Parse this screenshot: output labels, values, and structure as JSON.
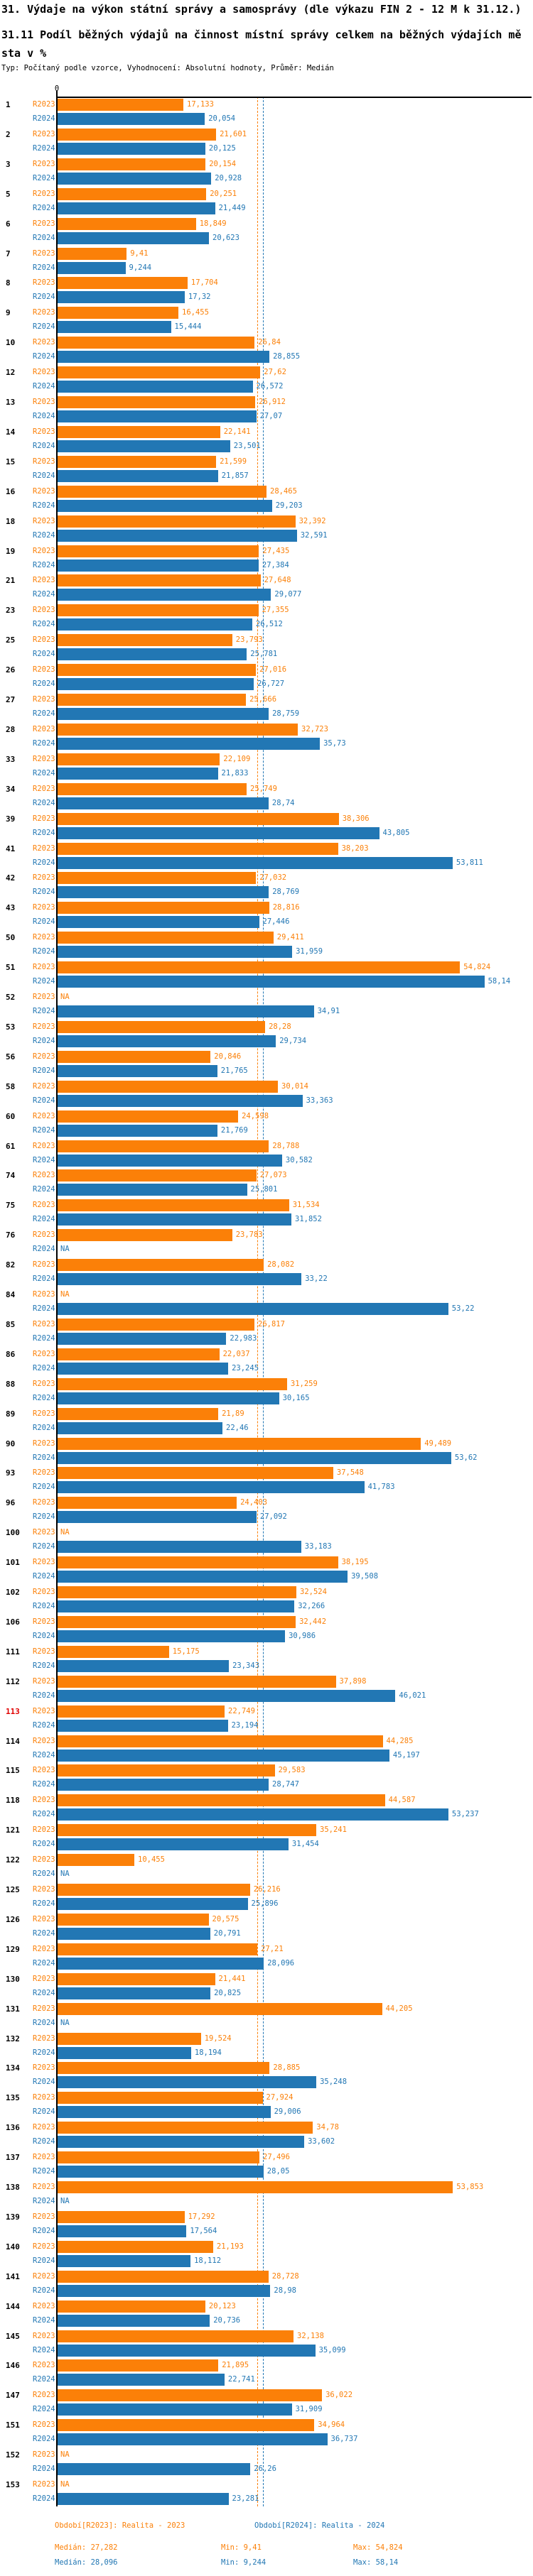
{
  "header": {
    "title": "31. Výdaje na výkon státní správy a samosprávy (dle výkazu FIN 2 - 12 M k 31.12.)",
    "subtitle": "31.11 Podíl běžných výdajů na činnost místní správy celkem na běžných výdajích města v %",
    "meta": "Typ: Počítaný podle vzorce, Vyhodnocení: Absolutní hodnoty, Průměr: Medián"
  },
  "axis": {
    "zero_label": "0"
  },
  "colors": {
    "r2023": "#fb8008",
    "r2024": "#2277b4",
    "axis": "#000000",
    "highlight": "#e00000"
  },
  "footer": {
    "legend_r2023": "Období[R2023]: Realita - 2023",
    "legend_r2024": "Období[R2024]: Realita - 2024",
    "r2023_stats": {
      "median": "Medián: 27,282",
      "min": "Min: 9,41",
      "max": "Max: 54,824"
    },
    "r2024_stats": {
      "median": "Medián: 28,096",
      "min": "Min: 9,244",
      "max": "Max: 58,14"
    }
  },
  "chart_data": {
    "type": "bar",
    "orientation": "horizontal",
    "unit": "%",
    "decimal_separator": ",",
    "na_text": "NA",
    "highlighted_category": "113",
    "xlim": [
      0,
      64.7
    ],
    "series": [
      {
        "name": "R2023",
        "legend": "Období[R2023]: Realita - 2023",
        "color": "#fb8008",
        "key": "r2023"
      },
      {
        "name": "R2024",
        "legend": "Období[R2024]: Realita - 2024",
        "color": "#2277b4",
        "key": "r2024"
      }
    ],
    "stats": {
      "r2023": {
        "median": 27.282,
        "min": 9.41,
        "max": 54.824
      },
      "r2024": {
        "median": 28.096,
        "min": 9.244,
        "max": 58.14
      }
    },
    "rows": [
      {
        "id": "1",
        "r2023": 17.133,
        "r2024": 20.054
      },
      {
        "id": "2",
        "r2023": 21.601,
        "r2024": 20.125
      },
      {
        "id": "3",
        "r2023": 20.154,
        "r2024": 20.928
      },
      {
        "id": "5",
        "r2023": 20.251,
        "r2024": 21.449
      },
      {
        "id": "6",
        "r2023": 18.849,
        "r2024": 20.623
      },
      {
        "id": "7",
        "r2023": 9.41,
        "r2024": 9.244
      },
      {
        "id": "8",
        "r2023": 17.704,
        "r2024": 17.32
      },
      {
        "id": "9",
        "r2023": 16.455,
        "r2024": 15.444
      },
      {
        "id": "10",
        "r2023": 26.84,
        "r2024": 28.855
      },
      {
        "id": "12",
        "r2023": 27.62,
        "r2024": 26.572
      },
      {
        "id": "13",
        "r2023": 26.912,
        "r2024": 27.07
      },
      {
        "id": "14",
        "r2023": 22.141,
        "r2024": 23.501
      },
      {
        "id": "15",
        "r2023": 21.599,
        "r2024": 21.857
      },
      {
        "id": "16",
        "r2023": 28.465,
        "r2024": 29.203
      },
      {
        "id": "18",
        "r2023": 32.392,
        "r2024": 32.591
      },
      {
        "id": "19",
        "r2023": 27.435,
        "r2024": 27.384
      },
      {
        "id": "21",
        "r2023": 27.648,
        "r2024": 29.077
      },
      {
        "id": "23",
        "r2023": 27.355,
        "r2024": 26.512
      },
      {
        "id": "25",
        "r2023": 23.793,
        "r2024": 25.781
      },
      {
        "id": "26",
        "r2023": 27.016,
        "r2024": 26.727
      },
      {
        "id": "27",
        "r2023": 25.666,
        "r2024": 28.759
      },
      {
        "id": "28",
        "r2023": 32.723,
        "r2024": 35.73
      },
      {
        "id": "33",
        "r2023": 22.109,
        "r2024": 21.833
      },
      {
        "id": "34",
        "r2023": 25.749,
        "r2024": 28.74
      },
      {
        "id": "39",
        "r2023": 38.306,
        "r2024": 43.805
      },
      {
        "id": "41",
        "r2023": 38.203,
        "r2024": 53.811
      },
      {
        "id": "42",
        "r2023": 27.032,
        "r2024": 28.769
      },
      {
        "id": "43",
        "r2023": 28.816,
        "r2024": 27.446
      },
      {
        "id": "50",
        "r2023": 29.411,
        "r2024": 31.959
      },
      {
        "id": "51",
        "r2023": 54.824,
        "r2024": 58.14
      },
      {
        "id": "52",
        "r2023": null,
        "r2024": 34.91
      },
      {
        "id": "53",
        "r2023": 28.28,
        "r2024": 29.734
      },
      {
        "id": "56",
        "r2023": 20.846,
        "r2024": 21.765
      },
      {
        "id": "58",
        "r2023": 30.014,
        "r2024": 33.363
      },
      {
        "id": "60",
        "r2023": 24.598,
        "r2024": 21.769
      },
      {
        "id": "61",
        "r2023": 28.788,
        "r2024": 30.582
      },
      {
        "id": "74",
        "r2023": 27.073,
        "r2024": 25.801
      },
      {
        "id": "75",
        "r2023": 31.534,
        "r2024": 31.852
      },
      {
        "id": "76",
        "r2023": 23.783,
        "r2024": null
      },
      {
        "id": "82",
        "r2023": 28.082,
        "r2024": 33.22
      },
      {
        "id": "84",
        "r2023": null,
        "r2024": 53.22
      },
      {
        "id": "85",
        "r2023": 26.817,
        "r2024": 22.983
      },
      {
        "id": "86",
        "r2023": 22.037,
        "r2024": 23.245
      },
      {
        "id": "88",
        "r2023": 31.259,
        "r2024": 30.165
      },
      {
        "id": "89",
        "r2023": 21.89,
        "r2024": 22.46
      },
      {
        "id": "90",
        "r2023": 49.489,
        "r2024": 53.62
      },
      {
        "id": "93",
        "r2023": 37.548,
        "r2024": 41.783
      },
      {
        "id": "96",
        "r2023": 24.403,
        "r2024": 27.092
      },
      {
        "id": "100",
        "r2023": null,
        "r2024": 33.183
      },
      {
        "id": "101",
        "r2023": 38.195,
        "r2024": 39.508
      },
      {
        "id": "102",
        "r2023": 32.524,
        "r2024": 32.266
      },
      {
        "id": "106",
        "r2023": 32.442,
        "r2024": 30.986
      },
      {
        "id": "111",
        "r2023": 15.175,
        "r2024": 23.343
      },
      {
        "id": "112",
        "r2023": 37.898,
        "r2024": 46.021
      },
      {
        "id": "113",
        "r2023": 22.749,
        "r2024": 23.194
      },
      {
        "id": "114",
        "r2023": 44.285,
        "r2024": 45.197
      },
      {
        "id": "115",
        "r2023": 29.583,
        "r2024": 28.747
      },
      {
        "id": "118",
        "r2023": 44.587,
        "r2024": 53.237
      },
      {
        "id": "121",
        "r2023": 35.241,
        "r2024": 31.454
      },
      {
        "id": "122",
        "r2023": 10.455,
        "r2024": null
      },
      {
        "id": "125",
        "r2023": 26.216,
        "r2024": 25.896
      },
      {
        "id": "126",
        "r2023": 20.575,
        "r2024": 20.791
      },
      {
        "id": "129",
        "r2023": 27.21,
        "r2024": 28.096
      },
      {
        "id": "130",
        "r2023": 21.441,
        "r2024": 20.825
      },
      {
        "id": "131",
        "r2023": 44.205,
        "r2024": null
      },
      {
        "id": "132",
        "r2023": 19.524,
        "r2024": 18.194
      },
      {
        "id": "134",
        "r2023": 28.885,
        "r2024": 35.248
      },
      {
        "id": "135",
        "r2023": 27.924,
        "r2024": 29.006
      },
      {
        "id": "136",
        "r2023": 34.78,
        "r2024": 33.602
      },
      {
        "id": "137",
        "r2023": 27.496,
        "r2024": 28.05
      },
      {
        "id": "138",
        "r2023": 53.853,
        "r2024": null
      },
      {
        "id": "139",
        "r2023": 17.292,
        "r2024": 17.564
      },
      {
        "id": "140",
        "r2023": 21.193,
        "r2024": 18.112
      },
      {
        "id": "141",
        "r2023": 28.728,
        "r2024": 28.98
      },
      {
        "id": "144",
        "r2023": 20.123,
        "r2024": 20.736
      },
      {
        "id": "145",
        "r2023": 32.138,
        "r2024": 35.099
      },
      {
        "id": "146",
        "r2023": 21.895,
        "r2024": 22.741
      },
      {
        "id": "147",
        "r2023": 36.022,
        "r2024": 31.909
      },
      {
        "id": "151",
        "r2023": 34.964,
        "r2024": 36.737
      },
      {
        "id": "152",
        "r2023": null,
        "r2024": 26.26
      },
      {
        "id": "153",
        "r2023": null,
        "r2024": 23.281
      }
    ]
  }
}
